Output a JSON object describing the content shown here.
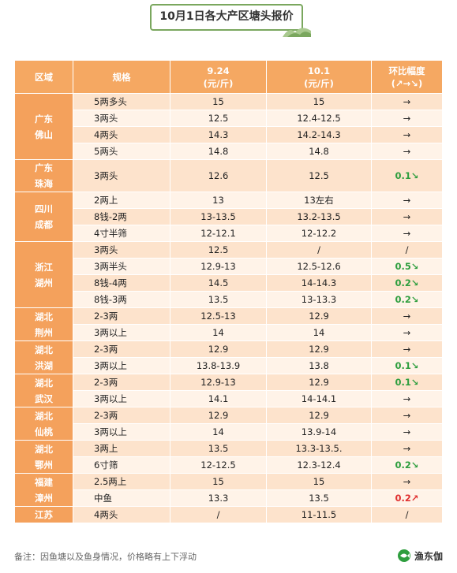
{
  "title": "10月1日各大产区塘头报价",
  "header": {
    "region": "区域",
    "spec": "规格",
    "col1_date": "9.24",
    "col1_unit": "(元/斤)",
    "col2_date": "10.1",
    "col2_unit": "(元/斤)",
    "change": "环比幅度",
    "change_sub": "(↗→↘)"
  },
  "groups": [
    {
      "region": [
        "广东",
        "佛山"
      ],
      "rows": [
        {
          "spec": "5两多头",
          "p1": "15",
          "p2": "15",
          "chg": "→",
          "tone": ""
        },
        {
          "spec": "3两头",
          "p1": "12.5",
          "p2": "12.4-12.5",
          "chg": "→",
          "tone": ""
        },
        {
          "spec": "4两头",
          "p1": "14.3",
          "p2": "14.2-14.3",
          "chg": "→",
          "tone": ""
        },
        {
          "spec": "5两头",
          "p1": "14.8",
          "p2": "14.8",
          "chg": "→",
          "tone": ""
        }
      ]
    },
    {
      "region": [
        "广东",
        "珠海"
      ],
      "rows": [
        {
          "spec": "3两头",
          "p1": "12.6",
          "p2": "12.5",
          "chg": "0.1↘",
          "tone": "g",
          "tall": true
        }
      ]
    },
    {
      "region": [
        "四川",
        "成都"
      ],
      "rows": [
        {
          "spec": "2两上",
          "p1": "13",
          "p2": "13左右",
          "chg": "→",
          "tone": ""
        },
        {
          "spec": "8钱-2两",
          "p1": "13-13.5",
          "p2": "13.2-13.5",
          "chg": "→",
          "tone": ""
        },
        {
          "spec": "4寸半筛",
          "p1": "12-12.1",
          "p2": "12-12.2",
          "chg": "→",
          "tone": ""
        }
      ]
    },
    {
      "region": [
        "浙江",
        "湖州"
      ],
      "rows": [
        {
          "spec": "3两头",
          "p1": "12.5",
          "p2": "/",
          "chg": "/",
          "tone": ""
        },
        {
          "spec": "3两半头",
          "p1": "12.9-13",
          "p2": "12.5-12.6",
          "chg": "0.5↘",
          "tone": "g"
        },
        {
          "spec": "8钱-4两",
          "p1": "14.5",
          "p2": "14-14.3",
          "chg": "0.2↘",
          "tone": "g"
        },
        {
          "spec": "8钱-3两",
          "p1": "13.5",
          "p2": "13-13.3",
          "chg": "0.2↘",
          "tone": "g"
        }
      ]
    },
    {
      "region": [
        "湖北",
        "荆州"
      ],
      "rows": [
        {
          "spec": "2-3两",
          "p1": "12.5-13",
          "p2": "12.9",
          "chg": "→",
          "tone": ""
        },
        {
          "spec": "3两以上",
          "p1": "14",
          "p2": "14",
          "chg": "→",
          "tone": ""
        }
      ]
    },
    {
      "region": [
        "湖北",
        "洪湖"
      ],
      "rows": [
        {
          "spec": "2-3两",
          "p1": "12.9",
          "p2": "12.9",
          "chg": "→",
          "tone": ""
        },
        {
          "spec": "3两以上",
          "p1": "13.8-13.9",
          "p2": "13.8",
          "chg": "0.1↘",
          "tone": "g"
        }
      ]
    },
    {
      "region": [
        "湖北",
        "武汉"
      ],
      "rows": [
        {
          "spec": "2-3两",
          "p1": "12.9-13",
          "p2": "12.9",
          "chg": "0.1↘",
          "tone": "g"
        },
        {
          "spec": "3两以上",
          "p1": "14.1",
          "p2": "14-14.1",
          "chg": "→",
          "tone": ""
        }
      ]
    },
    {
      "region": [
        "湖北",
        "仙桃"
      ],
      "rows": [
        {
          "spec": "2-3两",
          "p1": "12.9",
          "p2": "12.9",
          "chg": "→",
          "tone": ""
        },
        {
          "spec": "3两以上",
          "p1": "14",
          "p2": "13.9-14",
          "chg": "→",
          "tone": ""
        }
      ]
    },
    {
      "region": [
        "湖北",
        "鄂州"
      ],
      "rows": [
        {
          "spec": "3两上",
          "p1": "13.5",
          "p2": "13.3-13.5.",
          "chg": "→",
          "tone": ""
        },
        {
          "spec": "6寸筛",
          "p1": "12-12.5",
          "p2": "12.3-12.4",
          "chg": "0.2↘",
          "tone": "g"
        }
      ]
    },
    {
      "region": [
        "福建",
        "漳州"
      ],
      "rows": [
        {
          "spec": "2.5两上",
          "p1": "15",
          "p2": "15",
          "chg": "→",
          "tone": ""
        },
        {
          "spec": "中鱼",
          "p1": "13.3",
          "p2": "13.5",
          "chg": "0.2↗",
          "tone": "r"
        }
      ]
    },
    {
      "region": [
        "江苏"
      ],
      "rows": [
        {
          "spec": "4两头",
          "p1": "/",
          "p2": "11-11.5",
          "chg": "/",
          "tone": ""
        }
      ]
    }
  ],
  "footnote": "备注：因鱼塘以及鱼身情况，价格略有上下浮动",
  "brand": "渔东伽"
}
